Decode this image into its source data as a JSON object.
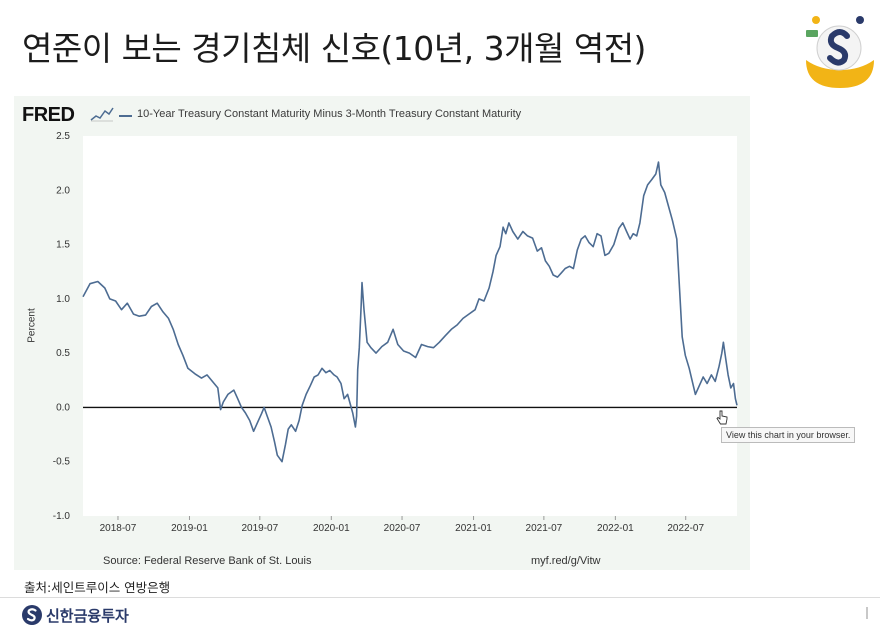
{
  "slide": {
    "title": "연준이 보는 경기침체 신호(10년, 3개월 역전)",
    "caption": "출처:세인트루이스 연방은행",
    "footer_brand": "신한금융투자"
  },
  "colors": {
    "series": "#4d6c92",
    "zero_line": "#111111",
    "plot_bg": "#ffffff",
    "frame_bg": "#f2f6f2",
    "brand_blue": "#2a3a6a",
    "logo_gold": "#f2b416"
  },
  "icons": [
    "fred-sparkline-icon",
    "pointer-cursor-icon",
    "shinhan-logo-icon",
    "corner-mascot-icon"
  ],
  "fred": {
    "logo": "FRED",
    "legend": "10-Year Treasury Constant Maturity Minus 3-Month Treasury Constant Maturity",
    "source": "Source: Federal Reserve Bank of St. Louis",
    "url": "myf.red/g/Vitw",
    "tooltip": "View this chart in your browser."
  },
  "chart_data": {
    "type": "line",
    "title": "",
    "series_name": "10-Year Treasury Constant Maturity Minus 3-Month Treasury Constant Maturity",
    "ylabel": "Percent",
    "xlabel": "",
    "ylim": [
      -1.0,
      2.5
    ],
    "xlim": [
      "2018-04-02",
      "2022-11-10"
    ],
    "yticks": [
      "2.5",
      "2.0",
      "1.5",
      "1.0",
      "0.5",
      "0.0",
      "-0.5",
      "-1.0"
    ],
    "xticks": [
      {
        "label": "2018-07",
        "date": "2018-07-01"
      },
      {
        "label": "2019-01",
        "date": "2019-01-01"
      },
      {
        "label": "2019-07",
        "date": "2019-07-01"
      },
      {
        "label": "2020-01",
        "date": "2020-01-01"
      },
      {
        "label": "2020-07",
        "date": "2020-07-01"
      },
      {
        "label": "2021-01",
        "date": "2021-01-01"
      },
      {
        "label": "2021-07",
        "date": "2021-07-01"
      },
      {
        "label": "2022-01",
        "date": "2022-01-01"
      },
      {
        "label": "2022-07",
        "date": "2022-07-01"
      }
    ],
    "grid": false,
    "points": [
      [
        "2018-04-02",
        1.02
      ],
      [
        "2018-04-20",
        1.14
      ],
      [
        "2018-05-10",
        1.16
      ],
      [
        "2018-05-28",
        1.1
      ],
      [
        "2018-06-10",
        1.0
      ],
      [
        "2018-06-25",
        0.98
      ],
      [
        "2018-07-10",
        0.9
      ],
      [
        "2018-07-25",
        0.96
      ],
      [
        "2018-08-10",
        0.86
      ],
      [
        "2018-08-25",
        0.84
      ],
      [
        "2018-09-10",
        0.85
      ],
      [
        "2018-09-25",
        0.93
      ],
      [
        "2018-10-10",
        0.96
      ],
      [
        "2018-10-25",
        0.88
      ],
      [
        "2018-11-08",
        0.82
      ],
      [
        "2018-11-20",
        0.72
      ],
      [
        "2018-12-03",
        0.58
      ],
      [
        "2018-12-15",
        0.48
      ],
      [
        "2018-12-28",
        0.36
      ],
      [
        "2019-01-15",
        0.31
      ],
      [
        "2019-02-01",
        0.27
      ],
      [
        "2019-02-15",
        0.3
      ],
      [
        "2019-03-01",
        0.24
      ],
      [
        "2019-03-15",
        0.18
      ],
      [
        "2019-03-22",
        -0.02
      ],
      [
        "2019-03-29",
        0.05
      ],
      [
        "2019-04-10",
        0.12
      ],
      [
        "2019-04-25",
        0.16
      ],
      [
        "2019-05-05",
        0.08
      ],
      [
        "2019-05-15",
        0.0
      ],
      [
        "2019-05-25",
        -0.05
      ],
      [
        "2019-06-05",
        -0.12
      ],
      [
        "2019-06-15",
        -0.22
      ],
      [
        "2019-06-25",
        -0.14
      ],
      [
        "2019-07-05",
        -0.06
      ],
      [
        "2019-07-12",
        0.0
      ],
      [
        "2019-07-20",
        -0.08
      ],
      [
        "2019-07-30",
        -0.18
      ],
      [
        "2019-08-08",
        -0.32
      ],
      [
        "2019-08-15",
        -0.44
      ],
      [
        "2019-08-27",
        -0.5
      ],
      [
        "2019-09-05",
        -0.34
      ],
      [
        "2019-09-12",
        -0.2
      ],
      [
        "2019-09-20",
        -0.16
      ],
      [
        "2019-10-01",
        -0.22
      ],
      [
        "2019-10-10",
        -0.12
      ],
      [
        "2019-10-18",
        0.02
      ],
      [
        "2019-10-28",
        0.12
      ],
      [
        "2019-11-08",
        0.2
      ],
      [
        "2019-11-18",
        0.28
      ],
      [
        "2019-11-28",
        0.3
      ],
      [
        "2019-12-08",
        0.36
      ],
      [
        "2019-12-18",
        0.32
      ],
      [
        "2019-12-28",
        0.34
      ],
      [
        "2020-01-08",
        0.3
      ],
      [
        "2020-01-16",
        0.28
      ],
      [
        "2020-01-26",
        0.22
      ],
      [
        "2020-02-03",
        0.08
      ],
      [
        "2020-02-12",
        0.12
      ],
      [
        "2020-02-18",
        0.04
      ],
      [
        "2020-02-25",
        -0.05
      ],
      [
        "2020-03-03",
        -0.18
      ],
      [
        "2020-03-06",
        -0.08
      ],
      [
        "2020-03-09",
        0.35
      ],
      [
        "2020-03-13",
        0.55
      ],
      [
        "2020-03-18",
        0.95
      ],
      [
        "2020-03-20",
        1.15
      ],
      [
        "2020-03-25",
        0.9
      ],
      [
        "2020-04-02",
        0.6
      ],
      [
        "2020-04-12",
        0.55
      ],
      [
        "2020-04-25",
        0.5
      ],
      [
        "2020-05-10",
        0.56
      ],
      [
        "2020-05-25",
        0.6
      ],
      [
        "2020-06-08",
        0.72
      ],
      [
        "2020-06-20",
        0.58
      ],
      [
        "2020-07-05",
        0.52
      ],
      [
        "2020-07-20",
        0.5
      ],
      [
        "2020-08-05",
        0.46
      ],
      [
        "2020-08-20",
        0.58
      ],
      [
        "2020-09-05",
        0.56
      ],
      [
        "2020-09-20",
        0.55
      ],
      [
        "2020-10-05",
        0.6
      ],
      [
        "2020-10-20",
        0.66
      ],
      [
        "2020-11-05",
        0.72
      ],
      [
        "2020-11-20",
        0.76
      ],
      [
        "2020-12-05",
        0.82
      ],
      [
        "2020-12-20",
        0.86
      ],
      [
        "2021-01-05",
        0.9
      ],
      [
        "2021-01-15",
        1.0
      ],
      [
        "2021-01-28",
        0.98
      ],
      [
        "2021-02-10",
        1.1
      ],
      [
        "2021-02-20",
        1.25
      ],
      [
        "2021-02-28",
        1.4
      ],
      [
        "2021-03-10",
        1.48
      ],
      [
        "2021-03-18",
        1.66
      ],
      [
        "2021-03-25",
        1.6
      ],
      [
        "2021-04-02",
        1.7
      ],
      [
        "2021-04-12",
        1.62
      ],
      [
        "2021-04-25",
        1.55
      ],
      [
        "2021-05-08",
        1.62
      ],
      [
        "2021-05-20",
        1.58
      ],
      [
        "2021-06-02",
        1.56
      ],
      [
        "2021-06-14",
        1.44
      ],
      [
        "2021-06-25",
        1.47
      ],
      [
        "2021-07-05",
        1.35
      ],
      [
        "2021-07-15",
        1.3
      ],
      [
        "2021-07-25",
        1.22
      ],
      [
        "2021-08-05",
        1.2
      ],
      [
        "2021-08-15",
        1.24
      ],
      [
        "2021-08-25",
        1.28
      ],
      [
        "2021-09-05",
        1.3
      ],
      [
        "2021-09-15",
        1.28
      ],
      [
        "2021-09-25",
        1.45
      ],
      [
        "2021-10-05",
        1.55
      ],
      [
        "2021-10-15",
        1.58
      ],
      [
        "2021-10-25",
        1.52
      ],
      [
        "2021-11-05",
        1.48
      ],
      [
        "2021-11-15",
        1.6
      ],
      [
        "2021-11-25",
        1.58
      ],
      [
        "2021-12-05",
        1.4
      ],
      [
        "2021-12-15",
        1.42
      ],
      [
        "2021-12-28",
        1.5
      ],
      [
        "2022-01-10",
        1.65
      ],
      [
        "2022-01-20",
        1.7
      ],
      [
        "2022-01-30",
        1.62
      ],
      [
        "2022-02-08",
        1.55
      ],
      [
        "2022-02-16",
        1.6
      ],
      [
        "2022-02-25",
        1.58
      ],
      [
        "2022-03-05",
        1.7
      ],
      [
        "2022-03-15",
        1.95
      ],
      [
        "2022-03-25",
        2.05
      ],
      [
        "2022-04-05",
        2.1
      ],
      [
        "2022-04-15",
        2.15
      ],
      [
        "2022-04-22",
        2.26
      ],
      [
        "2022-04-28",
        2.05
      ],
      [
        "2022-05-08",
        1.98
      ],
      [
        "2022-05-18",
        1.85
      ],
      [
        "2022-05-28",
        1.72
      ],
      [
        "2022-06-08",
        1.55
      ],
      [
        "2022-06-15",
        1.1
      ],
      [
        "2022-06-22",
        0.65
      ],
      [
        "2022-06-30",
        0.48
      ],
      [
        "2022-07-10",
        0.36
      ],
      [
        "2022-07-18",
        0.24
      ],
      [
        "2022-07-26",
        0.12
      ],
      [
        "2022-08-05",
        0.2
      ],
      [
        "2022-08-15",
        0.28
      ],
      [
        "2022-08-25",
        0.22
      ],
      [
        "2022-09-05",
        0.3
      ],
      [
        "2022-09-15",
        0.24
      ],
      [
        "2022-09-25",
        0.38
      ],
      [
        "2022-10-02",
        0.5
      ],
      [
        "2022-10-06",
        0.6
      ],
      [
        "2022-10-12",
        0.45
      ],
      [
        "2022-10-18",
        0.3
      ],
      [
        "2022-10-25",
        0.18
      ],
      [
        "2022-11-01",
        0.22
      ],
      [
        "2022-11-06",
        0.08
      ],
      [
        "2022-11-10",
        0.02
      ]
    ]
  }
}
